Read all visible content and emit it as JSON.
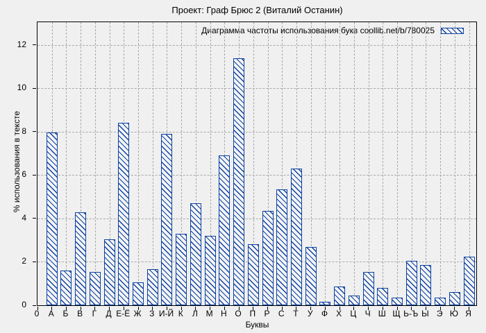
{
  "chart_data": {
    "type": "bar",
    "title": "Проект: Граф Брюс 2 (Виталий Останин)",
    "legend": "Диаграмма частоты использования букв coollib.net/b/780025",
    "legend_position": "top-right-inside",
    "xlabel": "Буквы",
    "ylabel": "% использования в тексте",
    "x_origin_label": "0",
    "categories": [
      "А",
      "Б",
      "В",
      "Г",
      "Д",
      "Е-Ё",
      "Ж",
      "З",
      "И-Й",
      "К",
      "Л",
      "М",
      "Н",
      "О",
      "П",
      "Р",
      "С",
      "Т",
      "У",
      "Ф",
      "Х",
      "Ц",
      "Ч",
      "Ш",
      "Щ",
      "Ь-Ъ",
      "Ы",
      "Э",
      "Ю",
      "Я"
    ],
    "values": [
      7.95,
      1.6,
      4.3,
      1.55,
      3.05,
      8.4,
      1.05,
      1.65,
      7.9,
      3.3,
      4.7,
      3.2,
      6.9,
      11.4,
      2.8,
      4.35,
      5.35,
      6.3,
      2.7,
      0.15,
      0.85,
      0.45,
      1.55,
      0.8,
      0.35,
      2.05,
      1.85,
      0.35,
      0.6,
      2.25
    ],
    "yticks": [
      0,
      2,
      4,
      6,
      8,
      10,
      12
    ],
    "ylim": [
      0,
      13.05
    ],
    "grid": true,
    "bar_color": "#0a41a1",
    "hatch": "diagonal-backslash",
    "frame_color": "#000000",
    "grid_color": "#a9a9a9",
    "background": "#f0f0f0"
  }
}
